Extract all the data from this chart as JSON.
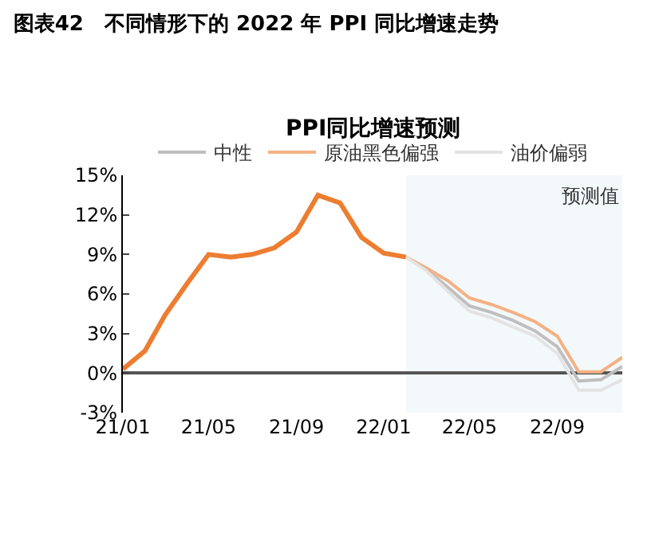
{
  "chart_data": {
    "type": "line",
    "title": "图表42　不同情形下的 2022 年 PPI 同比增速走势",
    "subtitle": "PPI同比增速预测",
    "series": [
      {
        "color": "#ed7d31",
        "x": [
          "2021-01",
          "2021-02",
          "2021-03",
          "2021-04",
          "2021-05",
          "2021-06",
          "2021-07",
          "2021-08",
          "2021-09",
          "2021-10",
          "2021-11",
          "2021-12",
          "2022-01",
          "2022-02"
        ],
        "values": [
          0.3,
          1.7,
          4.4,
          6.8,
          9.0,
          8.8,
          9.0,
          9.5,
          10.7,
          13.5,
          12.9,
          10.3,
          9.1,
          8.8
        ]
      },
      {
        "name": "中性",
        "color": "#bfbfbf",
        "x": [
          "2022-02",
          "2022-03",
          "2022-04",
          "2022-05",
          "2022-06",
          "2022-07",
          "2022-08",
          "2022-09",
          "2022-10",
          "2022-11",
          "2022-12"
        ],
        "values": [
          8.8,
          7.9,
          6.5,
          5.1,
          4.6,
          4.0,
          3.2,
          2.0,
          -0.6,
          -0.5,
          0.5
        ]
      },
      {
        "name": "原油黑色偏强",
        "color": "#f4b183",
        "x": [
          "2022-02",
          "2022-03",
          "2022-04",
          "2022-05",
          "2022-06",
          "2022-07",
          "2022-08",
          "2022-09",
          "2022-10",
          "2022-11",
          "2022-12"
        ],
        "values": [
          8.8,
          8.0,
          7.0,
          5.7,
          5.2,
          4.6,
          3.9,
          2.8,
          0.1,
          0.1,
          1.2
        ]
      },
      {
        "name": "油价偏弱",
        "color": "#e3e3e3",
        "x": [
          "2022-02",
          "2022-03",
          "2022-04",
          "2022-05",
          "2022-06",
          "2022-07",
          "2022-08",
          "2022-09",
          "2022-10",
          "2022-11",
          "2022-12"
        ],
        "values": [
          8.8,
          7.8,
          6.2,
          4.7,
          4.2,
          3.5,
          2.8,
          1.5,
          -1.3,
          -1.3,
          -0.5
        ]
      }
    ],
    "xlim": [
      "2021-01",
      "2022-12"
    ],
    "xticks": [
      {
        "value": "2021-01",
        "label": "21/01"
      },
      {
        "value": "2021-05",
        "label": "21/05"
      },
      {
        "value": "2021-09",
        "label": "21/09"
      },
      {
        "value": "2022-01",
        "label": "22/01"
      },
      {
        "value": "2022-05",
        "label": "22/05"
      },
      {
        "value": "2022-09",
        "label": "22/09"
      }
    ],
    "ylim": [
      -3,
      15
    ],
    "yticks": [
      {
        "value": -3,
        "label": "-3%"
      },
      {
        "value": 0,
        "label": "0%"
      },
      {
        "value": 3,
        "label": "3%"
      },
      {
        "value": 6,
        "label": "6%"
      },
      {
        "value": 9,
        "label": "9%"
      },
      {
        "value": 12,
        "label": "12%"
      },
      {
        "value": 15,
        "label": "15%"
      }
    ],
    "bands": [
      {
        "axis": "x",
        "from": "2022-02",
        "to": "2022-12",
        "label": "预测值",
        "color": "#f3f8fb"
      }
    ],
    "legend": "top",
    "grid": false
  }
}
